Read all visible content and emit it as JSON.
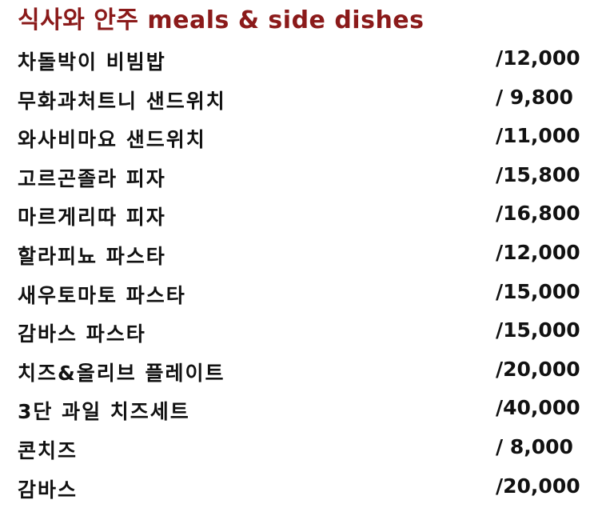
{
  "title": "식사와 안주 meals & side dishes",
  "items": [
    {
      "name": "차돌박이 비빔밥",
      "price": "/12,000"
    },
    {
      "name": "무화과처트니 샌드위치",
      "price": "/ 9,800"
    },
    {
      "name": "와사비마요 샌드위치",
      "price": "/11,000"
    },
    {
      "name": "고르곤졸라 피자",
      "price": "/15,800"
    },
    {
      "name": "마르게리따 피자",
      "price": "/16,800"
    },
    {
      "name": "할라피뇨 파스타",
      "price": "/12,000"
    },
    {
      "name": "새우토마토 파스타",
      "price": "/15,000"
    },
    {
      "name": "감바스 파스타",
      "price": "/15,000"
    },
    {
      "name": "치즈&올리브 플레이트",
      "price": "/20,000"
    },
    {
      "name": "3단 과일 치즈세트",
      "price": "/40,000"
    },
    {
      "name": "콘치즈",
      "price": "/ 8,000"
    },
    {
      "name": "감바스",
      "price": "/20,000"
    }
  ]
}
